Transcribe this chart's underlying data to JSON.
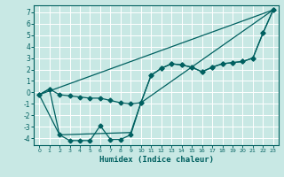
{
  "xlabel": "Humidex (Indice chaleur)",
  "background_color": "#c8e8e4",
  "grid_color": "#b0d8d4",
  "line_color": "#006060",
  "xlim": [
    -0.5,
    23.5
  ],
  "ylim": [
    -4.6,
    7.6
  ],
  "yticks": [
    -4,
    -3,
    -2,
    -1,
    0,
    1,
    2,
    3,
    4,
    5,
    6,
    7
  ],
  "xticks": [
    0,
    1,
    2,
    3,
    4,
    5,
    6,
    7,
    8,
    9,
    10,
    11,
    12,
    13,
    14,
    15,
    16,
    17,
    18,
    19,
    20,
    21,
    22,
    23
  ],
  "series": [
    {
      "x": [
        0,
        23
      ],
      "y": [
        -0.2,
        7.2
      ],
      "marker": null,
      "markersize": 0,
      "linewidth": 0.9
    },
    {
      "x": [
        0,
        1,
        2,
        3,
        4,
        5,
        6,
        7,
        8,
        9,
        10,
        11,
        12,
        13,
        14,
        15,
        16,
        17,
        18,
        19,
        20,
        21,
        22,
        23
      ],
      "y": [
        -0.2,
        0.3,
        -0.2,
        -0.3,
        -0.4,
        -0.5,
        -0.5,
        -0.7,
        -0.9,
        -1.0,
        -0.9,
        1.5,
        2.1,
        2.5,
        2.4,
        2.2,
        1.8,
        2.2,
        2.5,
        2.6,
        2.7,
        3.0,
        5.2,
        7.2
      ],
      "marker": "D",
      "markersize": 2.5,
      "linewidth": 0.9
    },
    {
      "x": [
        0,
        1,
        2,
        3,
        4,
        5,
        6,
        7,
        8,
        9,
        10,
        11,
        12,
        13,
        14,
        15,
        16,
        17,
        18,
        19,
        20,
        21,
        22,
        23
      ],
      "y": [
        -0.2,
        0.3,
        -3.7,
        -4.2,
        -4.2,
        -4.2,
        -2.9,
        -4.1,
        -4.1,
        -3.7,
        -0.9,
        1.5,
        2.1,
        2.5,
        2.4,
        2.2,
        1.8,
        2.2,
        2.5,
        2.6,
        2.7,
        3.0,
        5.2,
        7.2
      ],
      "marker": "D",
      "markersize": 2.5,
      "linewidth": 0.9
    },
    {
      "x": [
        0,
        2,
        9,
        10,
        23
      ],
      "y": [
        -0.2,
        -3.7,
        -3.5,
        -0.9,
        7.2
      ],
      "marker": null,
      "markersize": 0,
      "linewidth": 0.9
    }
  ]
}
